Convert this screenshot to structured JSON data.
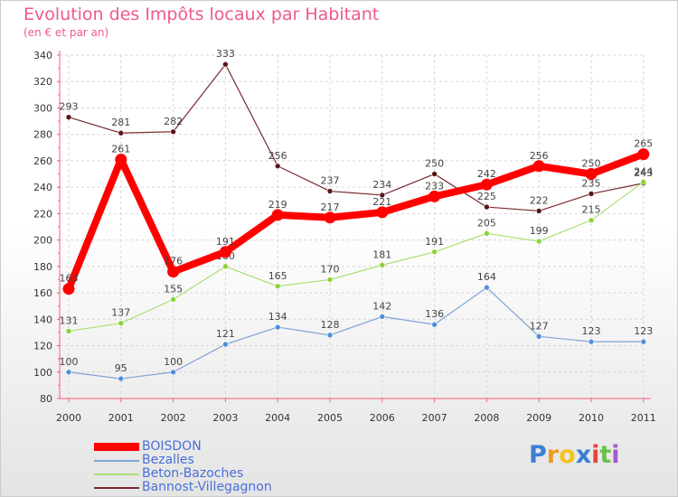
{
  "chart_data": {
    "type": "line",
    "title": "Evolution des Impôts locaux par Habitant",
    "subtitle": "(en € et par an)",
    "categories": [
      "2000",
      "2001",
      "2002",
      "2003",
      "2004",
      "2005",
      "2006",
      "2007",
      "2008",
      "2009",
      "2010",
      "2011"
    ],
    "ylim": [
      80,
      340
    ],
    "yticks": [
      80,
      100,
      120,
      140,
      160,
      180,
      200,
      220,
      240,
      260,
      280,
      300,
      320,
      340
    ],
    "grid": true,
    "series": [
      {
        "name": "Bannost-Villegagnon",
        "color": "#7a2a2e",
        "dot": "#5a1518",
        "width": 1.2,
        "values": [
          293,
          281,
          282,
          333,
          256,
          237,
          234,
          250,
          225,
          222,
          235,
          243
        ]
      },
      {
        "name": "Beton-Bazoches",
        "color": "#a8e070",
        "dot": "#8ad43a",
        "width": 1.2,
        "values": [
          131,
          137,
          155,
          180,
          165,
          170,
          181,
          191,
          205,
          199,
          215,
          244
        ]
      },
      {
        "name": "Bezalles",
        "color": "#7fa4d3",
        "dot": "#4f8fdc",
        "width": 1.2,
        "values": [
          100,
          95,
          100,
          121,
          134,
          128,
          142,
          136,
          164,
          127,
          123,
          123
        ]
      },
      {
        "name": "BOISDON",
        "color": "#ff0000",
        "dot": "#ff0000",
        "width": 8,
        "values": [
          163,
          261,
          176,
          191,
          219,
          217,
          221,
          233,
          242,
          256,
          250,
          265
        ]
      }
    ]
  },
  "legend": [
    {
      "label": "BOISDON",
      "color": "#ff0000"
    },
    {
      "label": "Bezalles",
      "color": "#7fa4d3"
    },
    {
      "label": "Beton-Bazoches",
      "color": "#a8e070"
    },
    {
      "label": "Bannost-Villegagnon",
      "color": "#7a2a2e"
    }
  ],
  "logo": {
    "letters": [
      "P",
      "r",
      "o",
      "x",
      "i",
      "t",
      "i"
    ],
    "colors": [
      "#3b7fd4",
      "#f29a1f",
      "#f2c21f",
      "#3b7fd4",
      "#e8423c",
      "#6cc04a",
      "#a45cc8"
    ]
  }
}
